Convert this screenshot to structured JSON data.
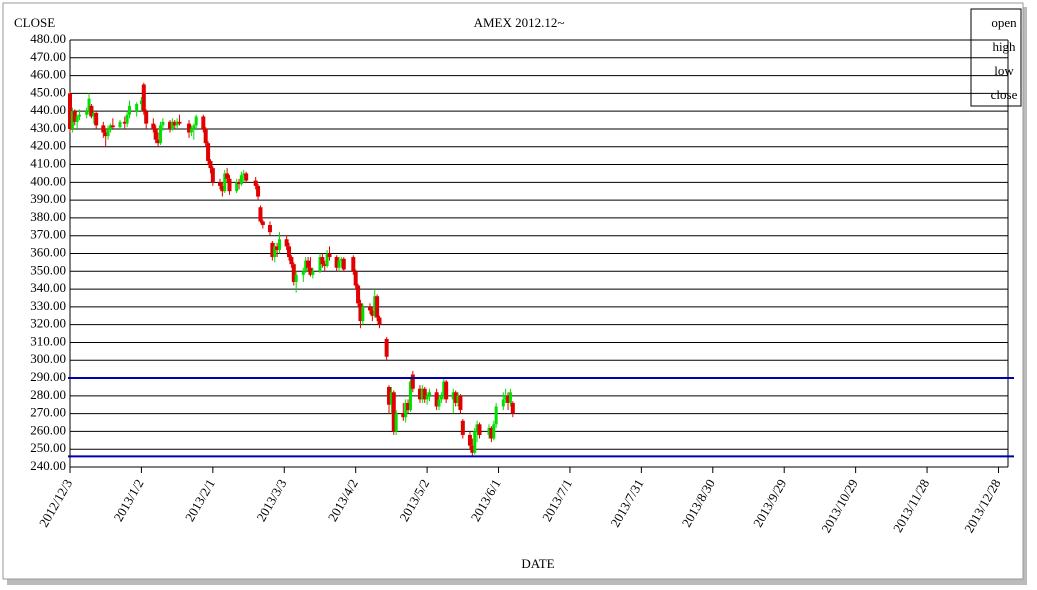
{
  "chart_data": {
    "type": "candlestick",
    "title": "AMEX 2012.12~",
    "y_label": "CLOSE",
    "x_label": "DATE",
    "legend": [
      "open",
      "high",
      "low",
      "close"
    ],
    "x": [
      "2012/12/3",
      "2012/12/4",
      "2012/12/5",
      "2012/12/6",
      "2012/12/7",
      "2012/12/10",
      "2012/12/11",
      "2012/12/12",
      "2012/12/13",
      "2012/12/14",
      "2012/12/17",
      "2012/12/18",
      "2012/12/19",
      "2012/12/20",
      "2012/12/21",
      "2012/12/24",
      "2012/12/26",
      "2012/12/27",
      "2012/12/28",
      "2012/12/31",
      "2013/1/2",
      "2013/1/3",
      "2013/1/4",
      "2013/1/7",
      "2013/1/8",
      "2013/1/9",
      "2013/1/10",
      "2013/1/11",
      "2013/1/14",
      "2013/1/15",
      "2013/1/16",
      "2013/1/17",
      "2013/1/18",
      "2013/1/22",
      "2013/1/23",
      "2013/1/24",
      "2013/1/25",
      "2013/1/28",
      "2013/1/29",
      "2013/1/30",
      "2013/1/31",
      "2013/2/1",
      "2013/2/4",
      "2013/2/5",
      "2013/2/6",
      "2013/2/7",
      "2013/2/8",
      "2013/2/11",
      "2013/2/12",
      "2013/2/13",
      "2013/2/14",
      "2013/2/15",
      "2013/2/19",
      "2013/2/20",
      "2013/2/21",
      "2013/2/22",
      "2013/2/25",
      "2013/2/26",
      "2013/2/27",
      "2013/2/28",
      "2013/3/1",
      "2013/3/4",
      "2013/3/5",
      "2013/3/6",
      "2013/3/7",
      "2013/3/8",
      "2013/3/11",
      "2013/3/12",
      "2013/3/13",
      "2013/3/14",
      "2013/3/15",
      "2013/3/18",
      "2013/3/19",
      "2013/3/20",
      "2013/3/21",
      "2013/3/22",
      "2013/3/25",
      "2013/3/26",
      "2013/3/27",
      "2013/3/28",
      "2013/4/1",
      "2013/4/2",
      "2013/4/3",
      "2013/4/4",
      "2013/4/5",
      "2013/4/8",
      "2013/4/9",
      "2013/4/10",
      "2013/4/11",
      "2013/4/12",
      "2013/4/15",
      "2013/4/16",
      "2013/4/17",
      "2013/4/18",
      "2013/4/19",
      "2013/4/22",
      "2013/4/23",
      "2013/4/24",
      "2013/4/25",
      "2013/4/26",
      "2013/4/29",
      "2013/4/30",
      "2013/5/1",
      "2013/5/2",
      "2013/5/3",
      "2013/5/6",
      "2013/5/7",
      "2013/5/8",
      "2013/5/9",
      "2013/5/10",
      "2013/5/13",
      "2013/5/14",
      "2013/5/15",
      "2013/5/16",
      "2013/5/17",
      "2013/5/20",
      "2013/5/21",
      "2013/5/22",
      "2013/5/23",
      "2013/5/24",
      "2013/5/28",
      "2013/5/29",
      "2013/5/30",
      "2013/5/31",
      "2013/6/3",
      "2013/6/4",
      "2013/6/5",
      "2013/6/6",
      "2013/6/7"
    ],
    "open": [
      450,
      430,
      440,
      434,
      437,
      438,
      440,
      443,
      437,
      439,
      432,
      428,
      426,
      430,
      432,
      431,
      434,
      433,
      438,
      440,
      444,
      455,
      440,
      433,
      430,
      424,
      422,
      432,
      434,
      430,
      434,
      432,
      434,
      433,
      428,
      430,
      432,
      437,
      430,
      422,
      412,
      408,
      400,
      398,
      395,
      405,
      402,
      395,
      400,
      399,
      404,
      405,
      401,
      398,
      386,
      378,
      376,
      366,
      358,
      364,
      362,
      368,
      364,
      358,
      354,
      344,
      348,
      350,
      356,
      352,
      348,
      350,
      358,
      354,
      353,
      360,
      358,
      352,
      356,
      357,
      358,
      350,
      342,
      332,
      322,
      330,
      328,
      325,
      336,
      324,
      312,
      285,
      275,
      282,
      260,
      270,
      268,
      276,
      272,
      292,
      284,
      278,
      284,
      278,
      280,
      282,
      274,
      278,
      280,
      288,
      278,
      282,
      276,
      280,
      266,
      258,
      252,
      248,
      260,
      264,
      258,
      262,
      256,
      264,
      274,
      278,
      280,
      276,
      276
    ],
    "high": [
      451,
      442,
      441,
      438,
      441,
      442,
      450,
      444,
      440,
      440,
      434,
      430,
      432,
      433,
      436,
      435,
      437,
      440,
      446,
      445,
      448,
      456,
      441,
      436,
      432,
      428,
      434,
      436,
      435,
      436,
      435,
      436,
      438,
      435,
      432,
      433,
      438,
      438,
      431,
      423,
      413,
      409,
      402,
      400,
      407,
      408,
      404,
      402,
      402,
      406,
      407,
      406,
      403,
      399,
      387,
      379,
      378,
      367,
      366,
      366,
      372,
      370,
      366,
      359,
      355,
      350,
      352,
      358,
      358,
      358,
      352,
      360,
      360,
      356,
      362,
      364,
      359,
      358,
      358,
      358,
      359,
      351,
      343,
      334,
      332,
      332,
      330,
      340,
      337,
      325,
      313,
      286,
      285,
      283,
      272,
      276,
      278,
      278,
      290,
      294,
      286,
      286,
      285,
      282,
      284,
      284,
      280,
      282,
      290,
      289,
      284,
      283,
      282,
      281,
      267,
      260,
      256,
      262,
      266,
      265,
      264,
      263,
      266,
      276,
      282,
      284,
      282,
      284,
      277
    ],
    "low": [
      428,
      428,
      432,
      430,
      435,
      436,
      438,
      436,
      433,
      430,
      425,
      420,
      424,
      428,
      430,
      430,
      430,
      431,
      436,
      437,
      440,
      438,
      430,
      428,
      422,
      420,
      421,
      429,
      428,
      429,
      430,
      430,
      432,
      425,
      426,
      424,
      430,
      428,
      420,
      410,
      405,
      398,
      396,
      392,
      394,
      400,
      393,
      394,
      396,
      398,
      400,
      400,
      396,
      390,
      377,
      374,
      370,
      356,
      355,
      358,
      360,
      362,
      356,
      352,
      342,
      338,
      344,
      349,
      350,
      347,
      346,
      349,
      352,
      350,
      352,
      356,
      350,
      350,
      352,
      350,
      348,
      340,
      330,
      318,
      320,
      326,
      322,
      324,
      322,
      318,
      300,
      270,
      270,
      258,
      258,
      266,
      265,
      270,
      271,
      282,
      276,
      276,
      276,
      275,
      277,
      272,
      272,
      276,
      278,
      276,
      270,
      274,
      274,
      270,
      256,
      250,
      246,
      247,
      254,
      256,
      256,
      254,
      255,
      262,
      272,
      276,
      272,
      274,
      268
    ],
    "close": [
      430,
      440,
      434,
      437,
      438,
      440,
      447,
      437,
      439,
      432,
      428,
      426,
      430,
      432,
      431,
      434,
      433,
      438,
      443,
      444,
      446,
      440,
      433,
      430,
      424,
      422,
      432,
      434,
      430,
      434,
      432,
      434,
      433,
      428,
      430,
      432,
      437,
      430,
      422,
      412,
      408,
      400,
      398,
      395,
      405,
      402,
      395,
      400,
      399,
      404,
      405,
      401,
      398,
      392,
      378,
      376,
      372,
      358,
      364,
      362,
      368,
      364,
      358,
      354,
      344,
      348,
      350,
      356,
      352,
      348,
      350,
      358,
      354,
      353,
      360,
      358,
      352,
      356,
      357,
      351,
      350,
      342,
      332,
      322,
      330,
      328,
      325,
      336,
      324,
      320,
      302,
      275,
      282,
      260,
      270,
      268,
      276,
      272,
      288,
      284,
      278,
      284,
      278,
      280,
      282,
      274,
      278,
      280,
      288,
      278,
      282,
      276,
      280,
      272,
      258,
      252,
      248,
      260,
      264,
      258,
      262,
      256,
      264,
      274,
      278,
      280,
      276,
      282,
      270
    ],
    "up_color": "#00e000",
    "down_color": "#e00000",
    "xlim": [
      "2012/12/3",
      "2014/1/1"
    ],
    "xticks": [
      "2012/12/3",
      "2013/1/2",
      "2013/2/1",
      "2013/3/3",
      "2013/4/2",
      "2013/5/2",
      "2013/6/1",
      "2013/7/1",
      "2013/7/31",
      "2013/8/30",
      "2013/9/29",
      "2013/10/29",
      "2013/11/28",
      "2013/12/28"
    ],
    "ylim": [
      240,
      480
    ],
    "yticks": [
      {
        "value": 240,
        "label": "240.00"
      },
      {
        "value": 250,
        "label": "250.00"
      },
      {
        "value": 260,
        "label": "260.00"
      },
      {
        "value": 270,
        "label": "270.00"
      },
      {
        "value": 280,
        "label": "280.00"
      },
      {
        "value": 290,
        "label": "290.00"
      },
      {
        "value": 300,
        "label": "300.00"
      },
      {
        "value": 310,
        "label": "310.00"
      },
      {
        "value": 320,
        "label": "320.00"
      },
      {
        "value": 330,
        "label": "330.00"
      },
      {
        "value": 340,
        "label": "340.00"
      },
      {
        "value": 350,
        "label": "350.00"
      },
      {
        "value": 360,
        "label": "360.00"
      },
      {
        "value": 370,
        "label": "370.00"
      },
      {
        "value": 380,
        "label": "380.00"
      },
      {
        "value": 390,
        "label": "390.00"
      },
      {
        "value": 400,
        "label": "400.00"
      },
      {
        "value": 410,
        "label": "410.00"
      },
      {
        "value": 420,
        "label": "420.00"
      },
      {
        "value": 430,
        "label": "430.00"
      },
      {
        "value": 440,
        "label": "440.00"
      },
      {
        "value": 450,
        "label": "450.00"
      },
      {
        "value": 460,
        "label": "460.00"
      },
      {
        "value": 470,
        "label": "470.00"
      },
      {
        "value": 480,
        "label": "480.00"
      }
    ],
    "grid": true,
    "hlines": [
      290,
      246
    ],
    "hline_color": "#0000aa"
  }
}
